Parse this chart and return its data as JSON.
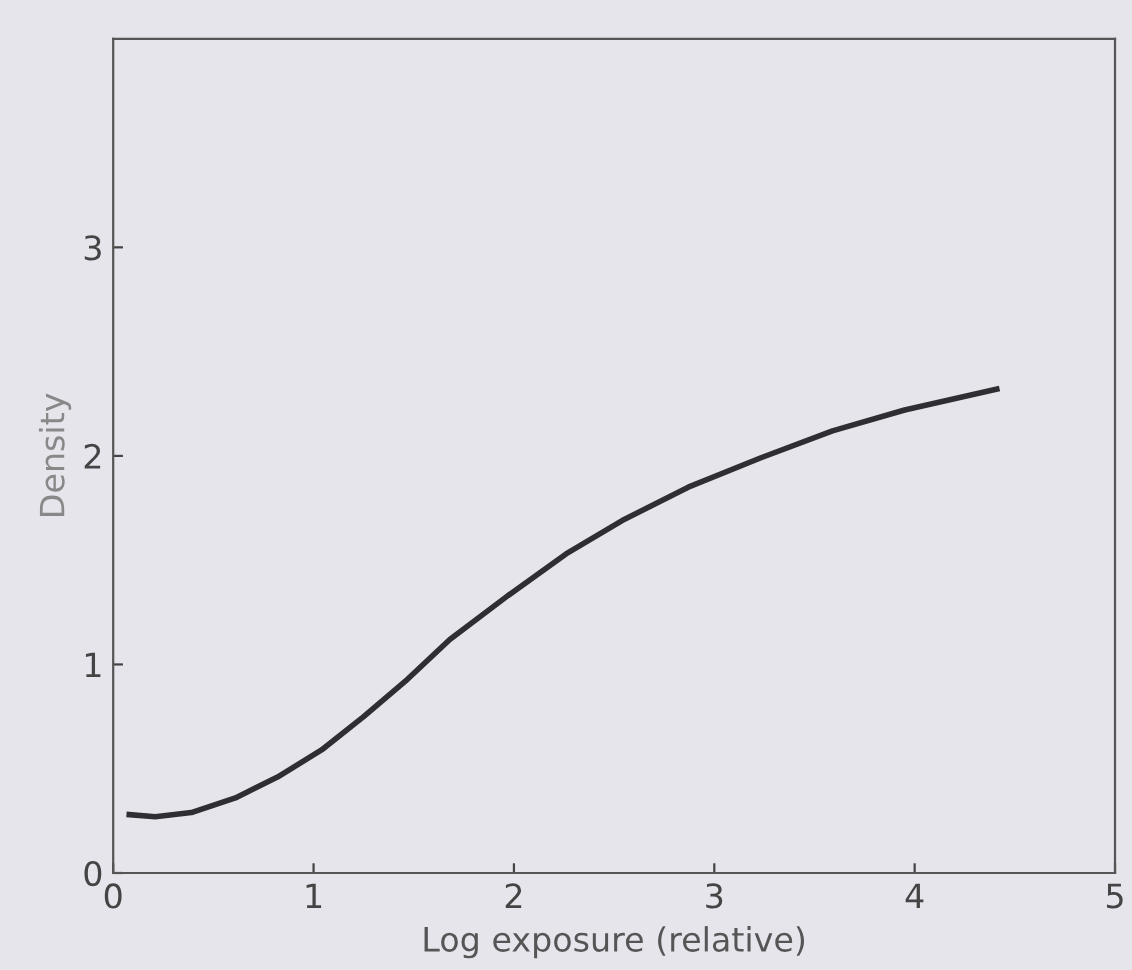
{
  "chart_data": {
    "type": "line",
    "xlabel": "Log exposure (relative)",
    "ylabel": "Density",
    "x": [
      0.08,
      0.21,
      0.39,
      0.61,
      0.82,
      1.04,
      1.25,
      1.47,
      1.68,
      1.97,
      2.26,
      2.54,
      2.87,
      3.23,
      3.59,
      3.95,
      4.41
    ],
    "series": [
      {
        "color": "#2f2f33",
        "values": [
          0.28,
          0.27,
          0.29,
          0.36,
          0.46,
          0.59,
          0.75,
          0.93,
          1.12,
          1.33,
          1.53,
          1.69,
          1.85,
          1.99,
          2.12,
          2.22,
          2.32
        ]
      }
    ],
    "xlim": [
      0,
      5
    ],
    "ylim": [
      0,
      4
    ],
    "xticks": [
      0,
      1,
      2,
      3,
      4,
      5
    ],
    "yticks": [
      0,
      1,
      2,
      3
    ],
    "grid": false,
    "legend": false,
    "marker": "none",
    "line_style": "solid"
  }
}
